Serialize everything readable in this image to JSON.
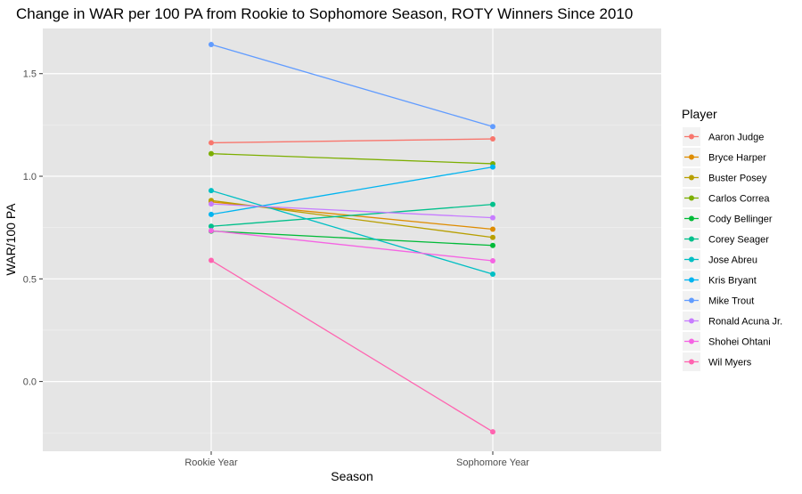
{
  "chart_data": {
    "type": "line",
    "title": "Change in WAR per 100 PA from Rookie to Sophomore Season, ROTY Winners Since 2010",
    "xlabel": "Season",
    "ylabel": "WAR/100 PA",
    "categories": [
      "Rookie Year",
      "Sophomore Year"
    ],
    "yticks": [
      0.0,
      0.5,
      1.0,
      1.5
    ],
    "ytick_labels": [
      "0.0",
      "0.5",
      "1.0",
      "1.5"
    ],
    "ylim": [
      -0.34,
      1.72
    ],
    "grid": true,
    "legend_title": "Player",
    "legend_position": "right",
    "series": [
      {
        "name": "Aaron Judge",
        "color": "#F8766D",
        "values": [
          1.163,
          1.182
        ]
      },
      {
        "name": "Bryce Harper",
        "color": "#DE8C00",
        "values": [
          0.875,
          0.742
        ]
      },
      {
        "name": "Buster Posey",
        "color": "#B79F00",
        "values": [
          0.882,
          0.702
        ]
      },
      {
        "name": "Carlos Correa",
        "color": "#7CAE00",
        "values": [
          1.11,
          1.061
        ]
      },
      {
        "name": "Cody Bellinger",
        "color": "#00BA38",
        "values": [
          0.733,
          0.663
        ]
      },
      {
        "name": "Corey Seager",
        "color": "#00C08B",
        "values": [
          0.756,
          0.863
        ]
      },
      {
        "name": "Jose Abreu",
        "color": "#00BFC4",
        "values": [
          0.93,
          0.523
        ]
      },
      {
        "name": "Kris Bryant",
        "color": "#00B4F0",
        "values": [
          0.814,
          1.045
        ]
      },
      {
        "name": "Mike Trout",
        "color": "#619CFF",
        "values": [
          1.642,
          1.242
        ]
      },
      {
        "name": "Ronald Acuna Jr.",
        "color": "#C77CFF",
        "values": [
          0.865,
          0.798
        ]
      },
      {
        "name": "Shohei Ohtani",
        "color": "#F564E3",
        "values": [
          0.735,
          0.588
        ]
      },
      {
        "name": "Wil Myers",
        "color": "#FF64B0",
        "values": [
          0.59,
          -0.245
        ]
      }
    ]
  }
}
